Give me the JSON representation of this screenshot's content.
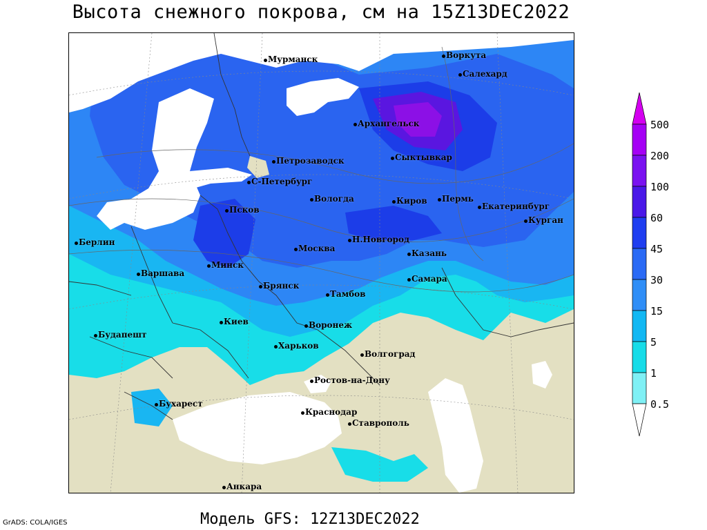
{
  "title": "Высота снежного покрова, см на 15Z13DEC2022",
  "model_line": "Модель GFS: 12Z13DEC2022",
  "credit": "GrADS: COLA/IGES",
  "colorbar": {
    "labels": [
      "500",
      "200",
      "100",
      "60",
      "45",
      "30",
      "15",
      "5",
      "1",
      "0.5"
    ],
    "colors": [
      "#d400f0",
      "#a500f5",
      "#7a12f0",
      "#4a18e8",
      "#1f3ef0",
      "#2a6af5",
      "#2f8ef7",
      "#12b8f3",
      "#17dce8",
      "#7ff0f5",
      "#ffffff"
    ]
  },
  "map_colors": {
    "land": "#e3e0c2",
    "water": "#ffffff",
    "cyan": "#18dde8",
    "sky": "#19b6f2",
    "blue": "#2d86f5",
    "royal": "#2a64f0",
    "deep": "#1c3de8",
    "violet": "#5a16e0",
    "purple": "#8c10e6"
  },
  "cities": [
    {
      "name": "Мурманск"
    },
    {
      "name": "Воркута"
    },
    {
      "name": "Салехард"
    },
    {
      "name": "Архангельск"
    },
    {
      "name": "Сыктывкар"
    },
    {
      "name": "Петрозаводск"
    },
    {
      "name": "С-Петербург"
    },
    {
      "name": "Вологда"
    },
    {
      "name": "Киров"
    },
    {
      "name": "Пермь"
    },
    {
      "name": "Екатеринбург"
    },
    {
      "name": "Курган"
    },
    {
      "name": "Псков"
    },
    {
      "name": "Н.Новгород"
    },
    {
      "name": "Москва"
    },
    {
      "name": "Казань"
    },
    {
      "name": "Берлин"
    },
    {
      "name": "Минск"
    },
    {
      "name": "Варшава"
    },
    {
      "name": "Брянск"
    },
    {
      "name": "Тамбов"
    },
    {
      "name": "Самара"
    },
    {
      "name": "Киев"
    },
    {
      "name": "Воронеж"
    },
    {
      "name": "Будапешт"
    },
    {
      "name": "Харьков"
    },
    {
      "name": "Волгоград"
    },
    {
      "name": "Ростов-на-Дону"
    },
    {
      "name": "Бухарест"
    },
    {
      "name": "Краснодар"
    },
    {
      "name": "Ставрополь"
    },
    {
      "name": "Анкара"
    }
  ]
}
